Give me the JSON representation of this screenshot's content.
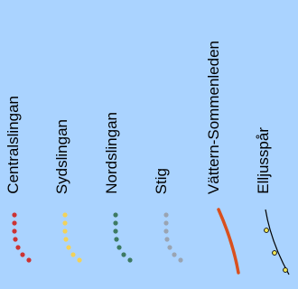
{
  "background_color": "#aad3ff",
  "legend": {
    "items": [
      {
        "id": "centralslingan",
        "label": "Centralslingan",
        "symbol": "dotted-trail",
        "color": "#cc3333"
      },
      {
        "id": "sydslingan",
        "label": "Sydslingan",
        "symbol": "dotted-trail",
        "color": "#f2d25a"
      },
      {
        "id": "nordslingan",
        "label": "Nordslingan",
        "symbol": "dotted-trail",
        "color": "#3d7a62"
      },
      {
        "id": "stig",
        "label": "Stig",
        "symbol": "dotted-trail",
        "color": "#9aa4b2"
      },
      {
        "id": "vattern-sommenleden",
        "label": "Vättern-Sommenleden",
        "symbol": "solid-curve",
        "color": "#d9501e"
      },
      {
        "id": "elljusspar",
        "label": "Elljusspår",
        "symbol": "line-with-lamps",
        "color": "#000000",
        "accent": "#f2e85a"
      }
    ]
  }
}
